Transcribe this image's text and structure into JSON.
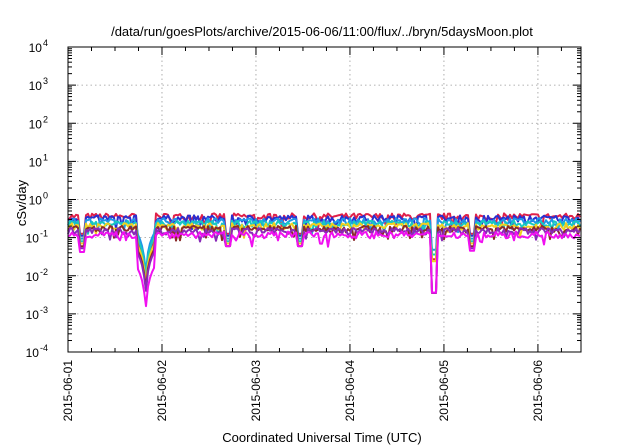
{
  "chart_data": {
    "type": "line",
    "title": "/data/run/goesPlots/archive/2015-06-06/11:00/flux/../bryn/5daysMoon.plot",
    "xlabel": "Coordinated Universal Time (UTC)",
    "ylabel": "cSv/day",
    "xscale": "time",
    "yscale": "log",
    "xlim": [
      "2015-06-01 00:00",
      "2015-06-06 11:00"
    ],
    "ylim": [
      0.0001,
      10000
    ],
    "grid": true,
    "legend": "none",
    "x_ticks": [
      "2015-06-01",
      "2015-06-02",
      "2015-06-03",
      "2015-06-04",
      "2015-06-05",
      "2015-06-06"
    ],
    "y_ticks": [
      {
        "value": 0.0001,
        "base": "10",
        "exp": "-4"
      },
      {
        "value": 0.001,
        "base": "10",
        "exp": "-3"
      },
      {
        "value": 0.01,
        "base": "10",
        "exp": "-2"
      },
      {
        "value": 0.1,
        "base": "10",
        "exp": "-1"
      },
      {
        "value": 1,
        "base": "10",
        "exp": "0"
      },
      {
        "value": 10,
        "base": "10",
        "exp": "1"
      },
      {
        "value": 100,
        "base": "10",
        "exp": "2"
      },
      {
        "value": 1000,
        "base": "10",
        "exp": "3"
      },
      {
        "value": 10000,
        "base": "10",
        "exp": "4"
      }
    ],
    "series": [
      {
        "color": "#e0204a",
        "base": 0.36,
        "min": 0.0045
      },
      {
        "color": "#2a2fd0",
        "base": 0.32,
        "min": 0.006
      },
      {
        "color": "#1e96e8",
        "base": 0.27,
        "min": 0.008
      },
      {
        "color": "#18c8c0",
        "base": 0.23,
        "min": 0.006
      },
      {
        "color": "#f0d020",
        "base": 0.2,
        "min": 0.004
      },
      {
        "color": "#8a2a2a",
        "base": 0.17,
        "min": 0.003
      },
      {
        "color": "#8a2ab8",
        "base": 0.15,
        "min": 0.0025
      },
      {
        "color": "#f010f0",
        "base": 0.12,
        "min": 0.001
      }
    ],
    "events": [
      {
        "time": "2015-06-01 19:50",
        "min_value": 0.001,
        "shape": "deep"
      },
      {
        "time": "2015-06-04 21:40",
        "min_value": 0.0035,
        "shape": "spike"
      },
      {
        "time": "2015-06-01 03:30",
        "min_value": 0.04,
        "shape": "small"
      },
      {
        "time": "2015-06-02 17:00",
        "min_value": 0.06,
        "shape": "small"
      },
      {
        "time": "2015-06-03 11:00",
        "min_value": 0.06,
        "shape": "small"
      },
      {
        "time": "2015-06-05 07:00",
        "min_value": 0.045,
        "shape": "small"
      }
    ]
  }
}
